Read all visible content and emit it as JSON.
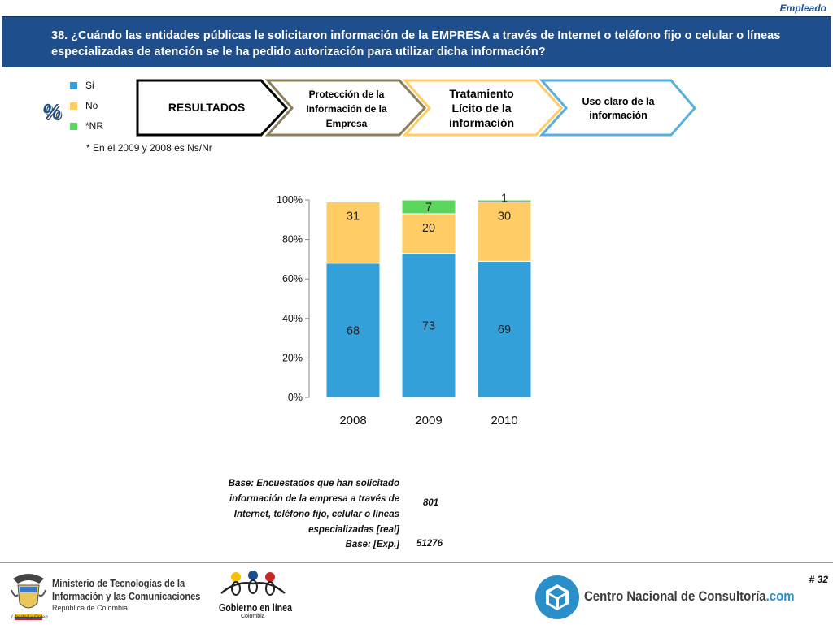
{
  "header": {
    "segment": "Empleado",
    "question": "38. ¿Cuándo las entidades públicas le solicitaron información de la EMPRESA a través de Internet o teléfono fijo o celular o líneas especializadas de atención se le ha pedido autorización para utilizar dicha información?"
  },
  "legend": {
    "items": [
      {
        "label": "Si",
        "color": "#33a0d9"
      },
      {
        "label": "No",
        "color": "#ffcc66"
      },
      {
        "label": "*NR",
        "color": "#5cd65c"
      }
    ],
    "note": "* En el 2009 y 2008 es Ns/Nr",
    "percent_symbol": "%"
  },
  "flow": {
    "steps": [
      {
        "label": "RESULTADOS",
        "border": "#000000"
      },
      {
        "label": "Protección de la Información de la Empresa",
        "border": "#8c7e5a"
      },
      {
        "label": "Tratamiento Lícito de la información",
        "border": "#ffcc66"
      },
      {
        "label": "Uso claro de la información",
        "border": "#5aaedc"
      }
    ]
  },
  "chart_data": {
    "type": "bar",
    "stacked": true,
    "categories": [
      "2008",
      "2009",
      "2010"
    ],
    "series": [
      {
        "name": "Si",
        "values": [
          68,
          73,
          69
        ],
        "color": "#33a0d9"
      },
      {
        "name": "No",
        "values": [
          31,
          20,
          30
        ],
        "color": "#ffcc66"
      },
      {
        "name": "*NR",
        "values": [
          0,
          7,
          1
        ],
        "color": "#5cd65c"
      }
    ],
    "data_labels": [
      [
        "68",
        "73",
        "69"
      ],
      [
        "31",
        "20",
        "30"
      ],
      [
        "",
        "7",
        "1"
      ]
    ],
    "yticks": [
      "0%",
      "20%",
      "40%",
      "60%",
      "80%",
      "100%"
    ],
    "ylim": [
      0,
      100
    ],
    "grid": false
  },
  "base": {
    "label": "Base: Encuestados que han solicitado información de la empresa a través de Internet, teléfono fijo, celular o líneas especializadas [real]",
    "value": "801",
    "exp_label": "Base: [Exp.]",
    "exp_value": "51276"
  },
  "footer": {
    "page": "# 32",
    "ministry_line1": "Ministerio de Tecnologías de la",
    "ministry_line2": "Información y las Comunicaciones",
    "ministry_line3": "República de Colombia",
    "ministry_motto": "Libertad y Orden",
    "gov_line1": "Gobierno en línea",
    "gov_line2": "Colombia",
    "cnc_name": "Centro Nacional de Consultoría",
    "cnc_suffix": ".com"
  }
}
